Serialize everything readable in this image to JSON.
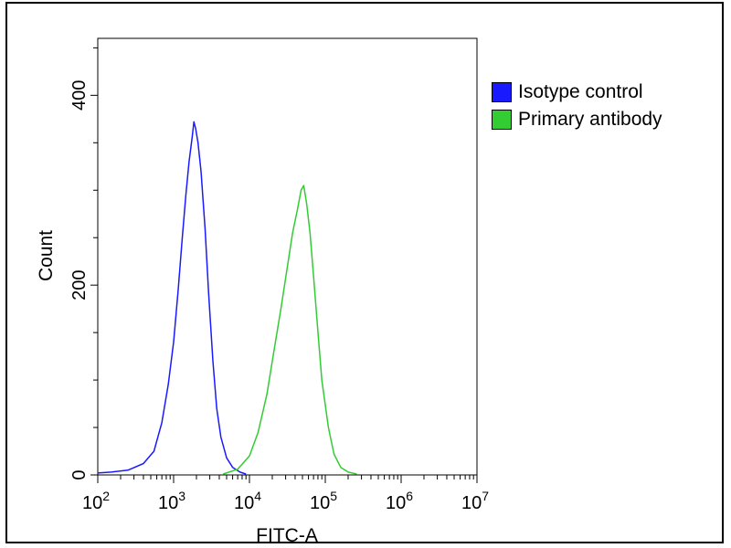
{
  "chart_data": {
    "type": "line",
    "xlabel": "FITC-A",
    "ylabel": "Count",
    "x_scale": "log",
    "xlim": [
      100,
      10000000
    ],
    "ylim": [
      0,
      460
    ],
    "x_ticks": [
      {
        "value": 100,
        "base": "10",
        "exp": "2"
      },
      {
        "value": 1000,
        "base": "10",
        "exp": "3"
      },
      {
        "value": 10000,
        "base": "10",
        "exp": "4"
      },
      {
        "value": 100000,
        "base": "10",
        "exp": "5"
      },
      {
        "value": 1000000,
        "base": "10",
        "exp": "6"
      },
      {
        "value": 10000000,
        "base": "10",
        "exp": "7"
      }
    ],
    "y_ticks": [
      {
        "value": 0,
        "label": "0"
      },
      {
        "value": 200,
        "label": "200"
      },
      {
        "value": 400,
        "label": "400"
      }
    ],
    "grid": false,
    "legend_position": "right",
    "series": [
      {
        "name": "Isotype control",
        "color": "#1a1aff",
        "points": [
          [
            100,
            2
          ],
          [
            150,
            3
          ],
          [
            250,
            5
          ],
          [
            400,
            12
          ],
          [
            550,
            25
          ],
          [
            700,
            55
          ],
          [
            850,
            95
          ],
          [
            1000,
            140
          ],
          [
            1150,
            195
          ],
          [
            1300,
            250
          ],
          [
            1450,
            295
          ],
          [
            1600,
            330
          ],
          [
            1750,
            355
          ],
          [
            1850,
            372
          ],
          [
            1950,
            365
          ],
          [
            2100,
            350
          ],
          [
            2300,
            320
          ],
          [
            2600,
            260
          ],
          [
            2900,
            190
          ],
          [
            3300,
            120
          ],
          [
            3700,
            70
          ],
          [
            4200,
            40
          ],
          [
            5000,
            18
          ],
          [
            6000,
            8
          ],
          [
            7500,
            3
          ],
          [
            9000,
            1
          ]
        ]
      },
      {
        "name": "Primary antibody",
        "color": "#33cc33",
        "points": [
          [
            4500,
            1
          ],
          [
            7000,
            6
          ],
          [
            10000,
            20
          ],
          [
            13000,
            45
          ],
          [
            17000,
            85
          ],
          [
            21000,
            130
          ],
          [
            26000,
            175
          ],
          [
            31000,
            215
          ],
          [
            37000,
            255
          ],
          [
            43000,
            280
          ],
          [
            48000,
            300
          ],
          [
            52000,
            305
          ],
          [
            57000,
            285
          ],
          [
            63000,
            255
          ],
          [
            70000,
            210
          ],
          [
            80000,
            150
          ],
          [
            90000,
            100
          ],
          [
            110000,
            50
          ],
          [
            130000,
            22
          ],
          [
            160000,
            8
          ],
          [
            200000,
            3
          ],
          [
            260000,
            1
          ]
        ]
      }
    ]
  }
}
